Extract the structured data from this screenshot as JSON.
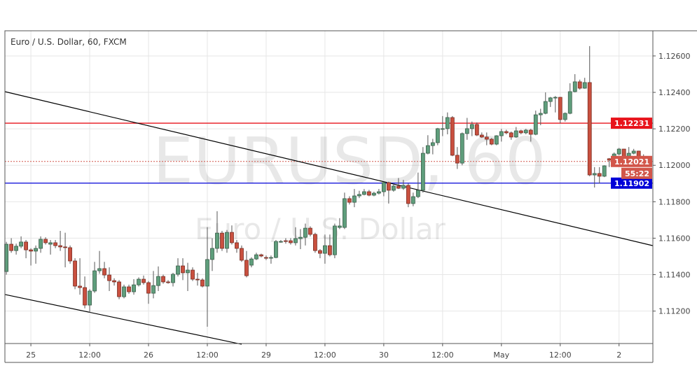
{
  "chart_title": "Euro / U.S. Dollar, 60, FXCM",
  "watermark": {
    "symbol": "EURUSD, 60",
    "description": "Euro / U.S. Dollar"
  },
  "countdown": "55:22",
  "colors": {
    "up": "#5f9e7c",
    "down": "#c9503f",
    "resistance": "#e8141c",
    "support": "#0000d8",
    "current": "#d2564a",
    "trendline": "#000000"
  },
  "chart_data": {
    "type": "candlestick",
    "timeframe": "60",
    "ylim": [
      1.11022,
      1.12738
    ],
    "xlim": [
      -0.3,
      131.9
    ],
    "grid": true,
    "y_ticks": [
      "1.12600",
      "1.12400",
      "1.12200",
      "1.12000",
      "1.11800",
      "1.11600",
      "1.11400",
      "1.11200"
    ],
    "x_ticks": [
      {
        "label": "25",
        "index": 5
      },
      {
        "label": "12:00",
        "index": 17
      },
      {
        "label": "26",
        "index": 29
      },
      {
        "label": "12:00",
        "index": 41
      },
      {
        "label": "29",
        "index": 53
      },
      {
        "label": "12:00",
        "index": 65
      },
      {
        "label": "30",
        "index": 77
      },
      {
        "label": "12:00",
        "index": 89
      },
      {
        "label": "May",
        "index": 101
      },
      {
        "label": "12:00",
        "index": 113
      },
      {
        "label": "2",
        "index": 125
      }
    ],
    "ohlc": [
      [
        1.11417,
        1.1158,
        1.114,
        1.11567
      ],
      [
        1.11567,
        1.116,
        1.1152,
        1.11532
      ],
      [
        1.11532,
        1.1157,
        1.1151,
        1.11556
      ],
      [
        1.11556,
        1.1161,
        1.11545,
        1.11579
      ],
      [
        1.11579,
        1.1159,
        1.1149,
        1.11536
      ],
      [
        1.11536,
        1.11545,
        1.1145,
        1.11529
      ],
      [
        1.11529,
        1.1156,
        1.1146,
        1.11544
      ],
      [
        1.11544,
        1.1161,
        1.1152,
        1.11594
      ],
      [
        1.11594,
        1.11605,
        1.11565,
        1.11575
      ],
      [
        1.11567,
        1.1159,
        1.1151,
        1.11575
      ],
      [
        1.11575,
        1.1159,
        1.11545,
        1.11559
      ],
      [
        1.11559,
        1.1164,
        1.1153,
        1.11552
      ],
      [
        1.11552,
        1.1163,
        1.1144,
        1.11548
      ],
      [
        1.11548,
        1.1156,
        1.1146,
        1.11475
      ],
      [
        1.11475,
        1.1149,
        1.1132,
        1.11337
      ],
      [
        1.11337,
        1.1149,
        1.1129,
        1.11329
      ],
      [
        1.11329,
        1.1139,
        1.11215,
        1.11233
      ],
      [
        1.11233,
        1.1132,
        1.11191,
        1.1131
      ],
      [
        1.1131,
        1.1147,
        1.113,
        1.11421
      ],
      [
        1.11421,
        1.1153,
        1.11405,
        1.11433
      ],
      [
        1.11433,
        1.1147,
        1.1138,
        1.11398
      ],
      [
        1.11398,
        1.1144,
        1.1131,
        1.11367
      ],
      [
        1.11367,
        1.1138,
        1.1134,
        1.1136
      ],
      [
        1.1136,
        1.1137,
        1.11265,
        1.11279
      ],
      [
        1.11279,
        1.11345,
        1.1127,
        1.11333
      ],
      [
        1.11333,
        1.11345,
        1.11295,
        1.11306
      ],
      [
        1.11306,
        1.11375,
        1.1129,
        1.11344
      ],
      [
        1.11344,
        1.11385,
        1.11335,
        1.11375
      ],
      [
        1.11375,
        1.11395,
        1.11345,
        1.11356
      ],
      [
        1.11356,
        1.11365,
        1.1124,
        1.11298
      ],
      [
        1.11298,
        1.1142,
        1.1127,
        1.1134
      ],
      [
        1.1134,
        1.11445,
        1.1131,
        1.1139
      ],
      [
        1.1139,
        1.114,
        1.1135,
        1.1136
      ],
      [
        1.1136,
        1.1137,
        1.1135,
        1.11356
      ],
      [
        1.11356,
        1.1141,
        1.11335,
        1.11402
      ],
      [
        1.11402,
        1.1149,
        1.1139,
        1.11448
      ],
      [
        1.11448,
        1.1149,
        1.1137,
        1.1141
      ],
      [
        1.1141,
        1.11465,
        1.1131,
        1.11425
      ],
      [
        1.11425,
        1.1144,
        1.11365,
        1.11375
      ],
      [
        1.11375,
        1.1141,
        1.1134,
        1.11371
      ],
      [
        1.11371,
        1.1138,
        1.1133,
        1.11337
      ],
      [
        1.11337,
        1.1166,
        1.11114,
        1.11483
      ],
      [
        1.11483,
        1.116,
        1.1142,
        1.11544
      ],
      [
        1.11544,
        1.11748,
        1.1152,
        1.11628
      ],
      [
        1.11628,
        1.1164,
        1.1153,
        1.11544
      ],
      [
        1.11544,
        1.11645,
        1.1152,
        1.11632
      ],
      [
        1.11632,
        1.1167,
        1.11565,
        1.11575
      ],
      [
        1.11575,
        1.1159,
        1.1152,
        1.11544
      ],
      [
        1.11544,
        1.1156,
        1.1147,
        1.11479
      ],
      [
        1.11479,
        1.1153,
        1.11385,
        1.11394
      ],
      [
        1.11452,
        1.11495,
        1.1144,
        1.11486
      ],
      [
        1.11486,
        1.1152,
        1.1148,
        1.11509
      ],
      [
        1.11509,
        1.11515,
        1.11495,
        1.11502
      ],
      [
        1.11494,
        1.11505,
        1.1148,
        1.1149
      ],
      [
        1.11494,
        1.11505,
        1.1146,
        1.11494
      ],
      [
        1.11494,
        1.1159,
        1.1149,
        1.11582
      ],
      [
        1.11582,
        1.1159,
        1.11575,
        1.11582
      ],
      [
        1.11586,
        1.116,
        1.1157,
        1.11582
      ],
      [
        1.11586,
        1.116,
        1.11565,
        1.11575
      ],
      [
        1.11575,
        1.1166,
        1.1156,
        1.11598
      ],
      [
        1.11598,
        1.1165,
        1.1154,
        1.11605
      ],
      [
        1.11605,
        1.1168,
        1.1156,
        1.11655
      ],
      [
        1.11655,
        1.11665,
        1.1161,
        1.11621
      ],
      [
        1.11621,
        1.1163,
        1.1152,
        1.11532
      ],
      [
        1.11532,
        1.1154,
        1.1149,
        1.11517
      ],
      [
        1.11517,
        1.1162,
        1.1146,
        1.11559
      ],
      [
        1.11559,
        1.1162,
        1.115,
        1.11509
      ],
      [
        1.11509,
        1.1168,
        1.1149,
        1.11667
      ],
      [
        1.11659,
        1.1171,
        1.1165,
        1.11667
      ],
      [
        1.11659,
        1.1185,
        1.1165,
        1.11817
      ],
      [
        1.11817,
        1.1183,
        1.11785,
        1.11797
      ],
      [
        1.11797,
        1.1187,
        1.1177,
        1.11832
      ],
      [
        1.11832,
        1.1186,
        1.1182,
        1.1184
      ],
      [
        1.1184,
        1.1187,
        1.11835,
        1.11855
      ],
      [
        1.11855,
        1.11865,
        1.1183,
        1.11836
      ],
      [
        1.11836,
        1.11855,
        1.1183,
        1.11847
      ],
      [
        1.11847,
        1.1187,
        1.1184,
        1.11855
      ],
      [
        1.11855,
        1.1191,
        1.1183,
        1.11905
      ],
      [
        1.11905,
        1.1191,
        1.1179,
        1.11863
      ],
      [
        1.11863,
        1.119,
        1.11855,
        1.11886
      ],
      [
        1.11886,
        1.1193,
        1.1187,
        1.11874
      ],
      [
        1.11874,
        1.1192,
        1.11865,
        1.1189
      ],
      [
        1.1189,
        1.119,
        1.1177,
        1.1179
      ],
      [
        1.1179,
        1.1185,
        1.11775,
        1.11828
      ],
      [
        1.11828,
        1.1196,
        1.1182,
        1.11863
      ],
      [
        1.11863,
        1.121,
        1.1185,
        1.12066
      ],
      [
        1.12066,
        1.12165,
        1.1206,
        1.12108
      ],
      [
        1.12108,
        1.12145,
        1.1206,
        1.12124
      ],
      [
        1.12124,
        1.12205,
        1.1211,
        1.12201
      ],
      [
        1.12201,
        1.1227,
        1.1216,
        1.12201
      ],
      [
        1.12201,
        1.1229,
        1.1217,
        1.12262
      ],
      [
        1.12262,
        1.1227,
        1.1205,
        1.12055
      ],
      [
        1.12055,
        1.121,
        1.1198,
        1.12012
      ],
      [
        1.12012,
        1.1218,
        1.12,
        1.12174
      ],
      [
        1.12174,
        1.1226,
        1.1214,
        1.12201
      ],
      [
        1.12201,
        1.1224,
        1.1216,
        1.12224
      ],
      [
        1.12224,
        1.12235,
        1.1216,
        1.12166
      ],
      [
        1.12166,
        1.1218,
        1.1215,
        1.12155
      ],
      [
        1.12155,
        1.1218,
        1.1211,
        1.12143
      ],
      [
        1.12143,
        1.1215,
        1.1211,
        1.12116
      ],
      [
        1.12116,
        1.12165,
        1.1211,
        1.12162
      ],
      [
        1.12162,
        1.122,
        1.1213,
        1.12185
      ],
      [
        1.12185,
        1.12195,
        1.1217,
        1.12178
      ],
      [
        1.12178,
        1.12185,
        1.1214,
        1.12155
      ],
      [
        1.12155,
        1.1221,
        1.1215,
        1.12189
      ],
      [
        1.12189,
        1.12195,
        1.1217,
        1.12178
      ],
      [
        1.12178,
        1.122,
        1.1217,
        1.12193
      ],
      [
        1.12193,
        1.122,
        1.1213,
        1.1217
      ],
      [
        1.1217,
        1.123,
        1.12165,
        1.12277
      ],
      [
        1.12277,
        1.1231,
        1.1222,
        1.12285
      ],
      [
        1.12285,
        1.124,
        1.1228,
        1.1235
      ],
      [
        1.1235,
        1.12375,
        1.1232,
        1.1237
      ],
      [
        1.12373,
        1.1238,
        1.1229,
        1.12373
      ],
      [
        1.12373,
        1.12375,
        1.1223,
        1.12251
      ],
      [
        1.12251,
        1.1229,
        1.1224,
        1.12285
      ],
      [
        1.12285,
        1.1245,
        1.1228,
        1.12404
      ],
      [
        1.12404,
        1.125,
        1.124,
        1.12458
      ],
      [
        1.12458,
        1.1247,
        1.12415,
        1.12423
      ],
      [
        1.12423,
        1.1248,
        1.1242,
        1.12454
      ],
      [
        1.12454,
        1.12654,
        1.1194,
        1.11947
      ],
      [
        1.11947,
        1.1199,
        1.11878,
        1.11955
      ],
      [
        1.11955,
        1.1199,
        1.119,
        1.1194
      ],
      [
        1.1194,
        1.12,
        1.11935,
        1.11997
      ],
      [
        1.12036,
        1.1204,
        1.1199,
        1.12028
      ],
      [
        1.12028,
        1.1207,
        1.12,
        1.12062
      ],
      [
        1.12062,
        1.12095,
        1.12055,
        1.12089
      ],
      [
        1.12089,
        1.1209,
        1.12,
        1.1202
      ],
      [
        1.1202,
        1.121,
        1.1201,
        1.12066
      ],
      [
        1.12066,
        1.1209,
        1.1206,
        1.12078
      ],
      [
        1.12078,
        1.1208,
        1.12,
        1.12047
      ],
      [
        1.12047,
        1.1206,
        1.12015,
        1.12021
      ]
    ],
    "horizontal_lines": [
      {
        "price": 1.12231,
        "label": "1.12231",
        "kind": "resistance"
      },
      {
        "price": 1.11902,
        "label": "1.11902",
        "kind": "support"
      },
      {
        "price": 1.12021,
        "label": "1.12021",
        "kind": "current"
      }
    ],
    "trendlines": [
      {
        "from": {
          "index": -0.3,
          "price": 1.12404
        },
        "to": {
          "index": 131.9,
          "price": 1.11559
        }
      },
      {
        "from": {
          "index": -0.3,
          "price": 1.11291
        },
        "to": {
          "index": 48,
          "price": 1.11018
        }
      }
    ]
  }
}
